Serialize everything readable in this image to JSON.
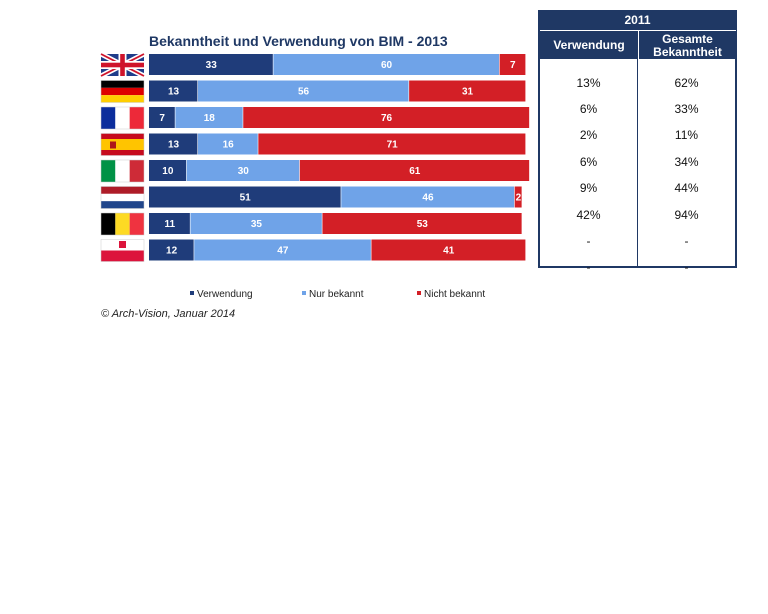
{
  "chart_data": {
    "type": "bar",
    "orientation": "horizontal",
    "stacked": "100%",
    "title": "Bekanntheit und Verwendung von BIM - 2013",
    "categories": [
      "uk",
      "de",
      "fr",
      "es",
      "it",
      "nl",
      "be",
      "pl"
    ],
    "series": [
      {
        "name": "Verwendung",
        "color": "#1f3c7a",
        "values": [
          33,
          13,
          7,
          13,
          10,
          51,
          11,
          12
        ]
      },
      {
        "name": "Nur bekannt",
        "color": "#6fa3e8",
        "values": [
          60,
          56,
          18,
          16,
          30,
          46,
          35,
          47
        ]
      },
      {
        "name": "Nicht bekannt",
        "color": "#d31f26",
        "values": [
          7,
          31,
          76,
          71,
          61,
          2,
          53,
          41
        ]
      }
    ],
    "legend_position": "bottom",
    "grid": false
  },
  "flags": [
    "united-kingdom",
    "germany",
    "france",
    "spain",
    "italy",
    "netherlands",
    "belgium",
    "poland"
  ],
  "legend": {
    "items": [
      {
        "label": "Verwendung",
        "color": "#1f3c7a"
      },
      {
        "label": "Nur bekannt",
        "color": "#6fa3e8"
      },
      {
        "label": "Nicht bekannt",
        "color": "#d31f26"
      }
    ]
  },
  "copyright": "© Arch-Vision, Januar 2014",
  "table": {
    "year": "2011",
    "col1": "Verwendung",
    "col2": "Gesamte Bekanntheit",
    "rows": [
      [
        "13%",
        "62%"
      ],
      [
        "6%",
        "33%"
      ],
      [
        "2%",
        "11%"
      ],
      [
        "6%",
        "34%"
      ],
      [
        "9%",
        "44%"
      ],
      [
        "42%",
        "94%"
      ],
      [
        "-",
        "-"
      ],
      [
        "-",
        "-"
      ]
    ]
  }
}
